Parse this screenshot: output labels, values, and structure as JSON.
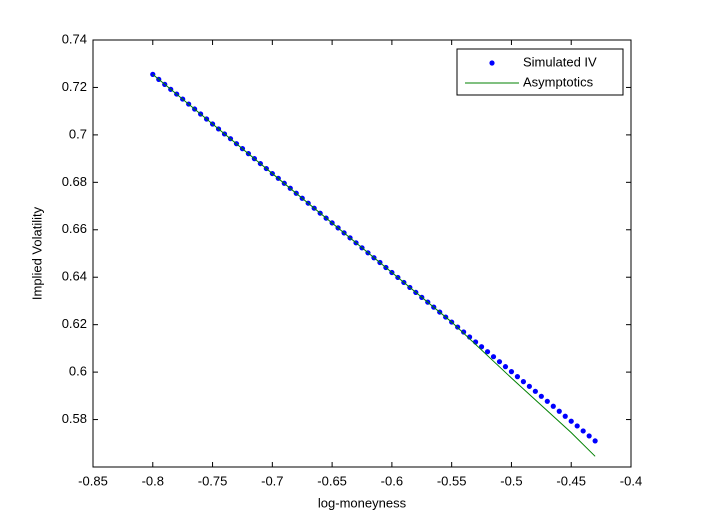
{
  "chart_data": {
    "type": "scatter-line",
    "xlabel": "log-moneyness",
    "ylabel": "Implied Volatility",
    "xlim": [
      -0.85,
      -0.4
    ],
    "ylim": [
      0.56,
      0.74
    ],
    "xticks": [
      -0.85,
      -0.8,
      -0.75,
      -0.7,
      -0.65,
      -0.6,
      -0.55,
      -0.5,
      -0.45,
      -0.4
    ],
    "yticks": [
      0.58,
      0.6,
      0.62,
      0.64,
      0.66,
      0.68,
      0.7,
      0.72,
      0.74
    ],
    "legend": "northeast",
    "series": [
      {
        "name": "Simulated IV",
        "color": "#0000ff",
        "style": "markers",
        "x": [
          -0.8,
          -0.795,
          -0.79,
          -0.785,
          -0.78,
          -0.775,
          -0.77,
          -0.765,
          -0.76,
          -0.755,
          -0.75,
          -0.745,
          -0.74,
          -0.735,
          -0.73,
          -0.725,
          -0.72,
          -0.715,
          -0.71,
          -0.705,
          -0.7,
          -0.695,
          -0.69,
          -0.685,
          -0.68,
          -0.675,
          -0.67,
          -0.665,
          -0.66,
          -0.655,
          -0.65,
          -0.645,
          -0.64,
          -0.635,
          -0.63,
          -0.625,
          -0.62,
          -0.615,
          -0.61,
          -0.605,
          -0.6,
          -0.595,
          -0.59,
          -0.585,
          -0.58,
          -0.575,
          -0.57,
          -0.565,
          -0.56,
          -0.555,
          -0.55,
          -0.545,
          -0.54,
          -0.535,
          -0.53,
          -0.525,
          -0.52,
          -0.515,
          -0.51,
          -0.505,
          -0.5,
          -0.495,
          -0.49,
          -0.485,
          -0.48,
          -0.475,
          -0.47,
          -0.465,
          -0.46,
          -0.455,
          -0.45,
          -0.445,
          -0.44,
          -0.435,
          -0.43
        ],
        "values": [
          0.7255,
          0.7234,
          0.7213,
          0.7192,
          0.7172,
          0.7151,
          0.713,
          0.7109,
          0.7088,
          0.7067,
          0.7046,
          0.7025,
          0.7004,
          0.6984,
          0.6963,
          0.6942,
          0.6921,
          0.69,
          0.6879,
          0.6858,
          0.6837,
          0.6817,
          0.6796,
          0.6775,
          0.6754,
          0.6733,
          0.6712,
          0.6691,
          0.667,
          0.6649,
          0.6629,
          0.6608,
          0.6587,
          0.6566,
          0.6545,
          0.6524,
          0.6503,
          0.6482,
          0.6462,
          0.6441,
          0.642,
          0.6399,
          0.6378,
          0.6357,
          0.6336,
          0.6315,
          0.6295,
          0.6274,
          0.6253,
          0.6232,
          0.6211,
          0.619,
          0.6169,
          0.6148,
          0.6127,
          0.6107,
          0.6086,
          0.6065,
          0.6044,
          0.6023,
          0.6002,
          0.5981,
          0.596,
          0.594,
          0.5919,
          0.5898,
          0.5877,
          0.5856,
          0.5835,
          0.5814,
          0.5793,
          0.5773,
          0.5752,
          0.5731,
          0.571
        ]
      },
      {
        "name": "Asymptotics",
        "color": "#008000",
        "style": "line",
        "x": [
          -0.8,
          -0.7,
          -0.6,
          -0.55,
          -0.5,
          -0.45,
          -0.43
        ],
        "values": [
          0.7255,
          0.6837,
          0.642,
          0.6211,
          0.5975,
          0.5745,
          0.5645
        ]
      }
    ]
  }
}
